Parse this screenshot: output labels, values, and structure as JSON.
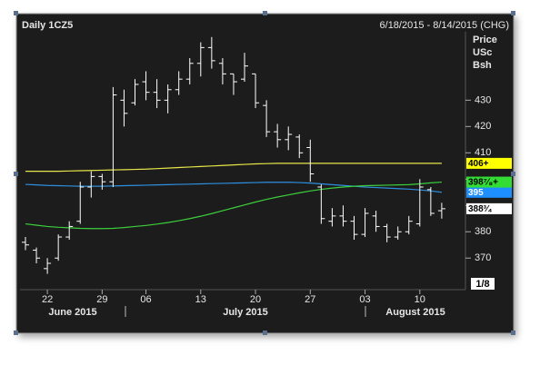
{
  "chart_data": {
    "type": "ohlc",
    "title": "Daily 1CZ5",
    "subtitle": "6/18/2015 - 8/14/2015 (CHG)",
    "y_label": [
      "Price",
      "USc",
      "Bsh"
    ],
    "tick_size": "1/8",
    "x": [
      "2015-06-18",
      "2015-06-19",
      "2015-06-22",
      "2015-06-23",
      "2015-06-24",
      "2015-06-25",
      "2015-06-26",
      "2015-06-29",
      "2015-06-30",
      "2015-07-01",
      "2015-07-02",
      "2015-07-06",
      "2015-07-07",
      "2015-07-08",
      "2015-07-09",
      "2015-07-10",
      "2015-07-13",
      "2015-07-14",
      "2015-07-15",
      "2015-07-16",
      "2015-07-17",
      "2015-07-20",
      "2015-07-21",
      "2015-07-22",
      "2015-07-23",
      "2015-07-24",
      "2015-07-27",
      "2015-07-28",
      "2015-07-29",
      "2015-07-30",
      "2015-07-31",
      "2015-08-03",
      "2015-08-04",
      "2015-08-05",
      "2015-08-06",
      "2015-08-07",
      "2015-08-10",
      "2015-08-11",
      "2015-08-12"
    ],
    "open": [
      376,
      373,
      366,
      370,
      378,
      384,
      397,
      401,
      399,
      430,
      429,
      437,
      433,
      430,
      434,
      438,
      444,
      450,
      444,
      440,
      438,
      440,
      428,
      418,
      415,
      416,
      412,
      397,
      384,
      386,
      384,
      379,
      386,
      382,
      378,
      380,
      383,
      396,
      388
    ],
    "high": [
      378,
      374,
      370,
      379,
      384,
      399,
      403,
      402,
      435,
      434,
      438,
      441,
      438,
      436,
      441,
      446,
      452,
      454,
      446,
      440,
      448,
      440,
      430,
      421,
      420,
      417,
      415,
      398,
      389,
      390,
      386,
      389,
      388,
      383,
      382,
      386,
      400,
      397,
      391
    ],
    "low": [
      373,
      368,
      364,
      369,
      377,
      383,
      393,
      396,
      397,
      420,
      428,
      430,
      427,
      425,
      432,
      436,
      439,
      442,
      436,
      432,
      437,
      427,
      416,
      412,
      411,
      408,
      399,
      383,
      382,
      382,
      377,
      378,
      380,
      376,
      377,
      379,
      382,
      386,
      385
    ],
    "close": [
      375,
      370,
      368,
      378,
      382,
      397,
      401,
      399,
      432,
      425,
      436,
      433,
      430,
      434,
      438,
      444,
      450,
      445,
      440,
      437,
      443,
      429,
      418,
      415,
      417,
      410,
      402,
      385,
      386,
      384,
      379,
      387,
      382,
      378,
      380,
      384,
      397,
      387,
      388.75
    ],
    "color": "#ffffff",
    "last_label": "388³⁄₄",
    "last_label_color": "#ffffff",
    "moving_averages": [
      {
        "color": "#e6e64a",
        "label_color": "#ffff00",
        "last_label": "406+",
        "values": [
          403,
          403,
          403,
          403,
          403.1,
          403.2,
          403.3,
          403.4,
          403.5,
          403.6,
          403.7,
          403.8,
          404,
          404.2,
          404.4,
          404.6,
          404.8,
          405,
          405.2,
          405.4,
          405.6,
          405.8,
          405.9,
          406,
          406,
          406,
          406,
          406,
          406,
          406,
          406,
          406,
          406,
          406,
          406,
          406,
          406,
          406,
          406
        ]
      },
      {
        "color": "#2e8fe0",
        "label_color": "#1e8fff",
        "last_label": "395",
        "values": [
          398,
          397.8,
          397.6,
          397.5,
          397.4,
          397.3,
          397.3,
          397.3,
          397.4,
          397.5,
          397.6,
          397.7,
          397.8,
          397.9,
          398,
          398.1,
          398.2,
          398.3,
          398.4,
          398.5,
          398.6,
          398.7,
          398.8,
          398.8,
          398.8,
          398.7,
          398.5,
          398.2,
          397.9,
          397.6,
          397.3,
          397,
          396.8,
          396.6,
          396.4,
          396.2,
          395.9,
          395.5,
          395
        ]
      },
      {
        "color": "#3ccf3c",
        "label_color": "#33dd33",
        "last_label": "398⁷⁄₈+",
        "values": [
          383,
          382.5,
          382,
          381.7,
          381.5,
          381.3,
          381.2,
          381.2,
          381.3,
          381.6,
          382,
          382.4,
          382.9,
          383.5,
          384.2,
          385,
          385.9,
          386.9,
          388,
          389.1,
          390.2,
          391.3,
          392.3,
          393.2,
          394,
          394.8,
          395.5,
          396.1,
          396.6,
          397,
          397.3,
          397.5,
          397.6,
          397.7,
          397.8,
          397.9,
          398.2,
          398.6,
          398.875
        ]
      }
    ],
    "ylim": [
      358,
      456
    ],
    "yticks": [
      370,
      380,
      390,
      400,
      410,
      420,
      430
    ],
    "ytick_labels_shown": [
      370,
      380,
      410,
      420,
      430
    ],
    "xticks": [
      {
        "value": "2015-06-22",
        "label": "22"
      },
      {
        "value": "2015-06-29",
        "label": "29"
      },
      {
        "value": "2015-07-06",
        "label": "06"
      },
      {
        "value": "2015-07-13",
        "label": "13"
      },
      {
        "value": "2015-07-20",
        "label": "20"
      },
      {
        "value": "2015-07-27",
        "label": "27"
      },
      {
        "value": "2015-08-03",
        "label": "03"
      },
      {
        "value": "2015-08-10",
        "label": "10"
      }
    ],
    "month_labels": [
      "June 2015",
      "July 2015",
      "August 2015"
    ]
  }
}
